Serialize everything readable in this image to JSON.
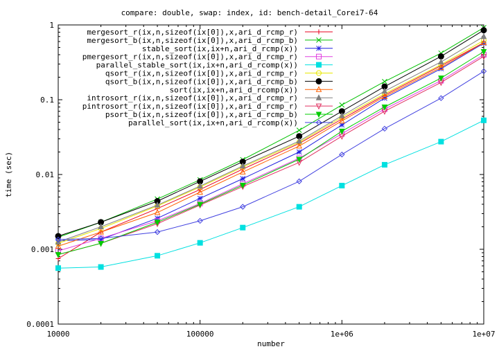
{
  "chart_data": {
    "type": "line",
    "title": "compare: double, swap: index, id: bench-detail_Corei7-64",
    "xlabel": "number",
    "ylabel": "time (sec)",
    "xscale": "log",
    "yscale": "log",
    "xlim": [
      10000,
      10000000
    ],
    "ylim": [
      0.0001,
      1
    ],
    "x_ticks": [
      {
        "value": 10000,
        "label": "10000"
      },
      {
        "value": 100000,
        "label": "100000"
      },
      {
        "value": 1000000,
        "label": "1e+06"
      },
      {
        "value": 10000000,
        "label": "1e+07"
      }
    ],
    "y_ticks": [
      {
        "value": 0.0001,
        "label": "0.0001"
      },
      {
        "value": 0.001,
        "label": "0.001"
      },
      {
        "value": 0.01,
        "label": "0.01"
      },
      {
        "value": 0.1,
        "label": "0.1"
      },
      {
        "value": 1,
        "label": "1"
      }
    ],
    "legend_position": "top-right",
    "x": [
      10000,
      20000,
      50000,
      100000,
      200000,
      500000,
      1000000,
      2000000,
      5000000,
      10000000
    ],
    "series": [
      {
        "name": "mergesort_r(ix,n,sizeof(ix[0]),x,ari_d_rcmp_r)",
        "color": "#e8001c",
        "marker": "plus",
        "values": [
          0.00075,
          0.0017,
          0.0035,
          0.0063,
          0.0118,
          0.026,
          0.055,
          0.115,
          0.285,
          0.58
        ]
      },
      {
        "name": "mergesort_b(ix,n,sizeof(ix[0]),x,ari_d_rcmp_b)",
        "color": "#00c000",
        "marker": "cross",
        "values": [
          0.00145,
          0.0023,
          0.0047,
          0.0085,
          0.0158,
          0.039,
          0.085,
          0.175,
          0.42,
          0.92
        ]
      },
      {
        "name": "stable_sort(ix,ix+n,ari_d_rcmp(x))",
        "color": "#2020e0",
        "marker": "star",
        "values": [
          0.0013,
          0.00135,
          0.0026,
          0.0048,
          0.0088,
          0.02,
          0.046,
          0.105,
          0.26,
          0.57
        ]
      },
      {
        "name": "pmergesort_r(ix,n,sizeof(ix[0]),x,ari_d_rcmp_r)",
        "color": "#e040e0",
        "marker": "square-open",
        "values": [
          0.00095,
          0.0014,
          0.0024,
          0.0041,
          0.0075,
          0.0165,
          0.035,
          0.075,
          0.18,
          0.4
        ]
      },
      {
        "name": "parallel_stable_sort(ix,ix+n,ari_d_rcomp(x))",
        "color": "#00e0e0",
        "marker": "square-filled",
        "values": [
          0.00056,
          0.00058,
          0.00082,
          0.00122,
          0.00195,
          0.0037,
          0.0071,
          0.0135,
          0.0275,
          0.053
        ]
      },
      {
        "name": "qsort_r(ix,n,sizeof(ix[0]),x,ari_d_rcmp_r)",
        "color": "#e8e800",
        "marker": "circle-open",
        "values": [
          0.0012,
          0.0019,
          0.0038,
          0.0068,
          0.0126,
          0.027,
          0.058,
          0.12,
          0.295,
          0.62
        ]
      },
      {
        "name": "qsort_b(ix,n,sizeof(ix[0]),x,ari_d_rcmp_b)",
        "color": "#000000",
        "marker": "circle-filled",
        "values": [
          0.0015,
          0.0023,
          0.0044,
          0.0081,
          0.0148,
          0.0325,
          0.07,
          0.15,
          0.38,
          0.85
        ]
      },
      {
        "name": "sort(ix,ix+n,ari_d_rcomp(x))",
        "color": "#ff6000",
        "marker": "triangle-open",
        "values": [
          0.0011,
          0.0017,
          0.0031,
          0.0058,
          0.0108,
          0.024,
          0.052,
          0.11,
          0.27,
          0.58
        ]
      },
      {
        "name": "introsort_r(ix,n,sizeof(ix[0]),x,ari_d_rcmp_r)",
        "color": "#808080",
        "marker": "triangle-filled",
        "values": [
          0.00125,
          0.002,
          0.0039,
          0.007,
          0.013,
          0.028,
          0.061,
          0.13,
          0.32,
          0.7
        ]
      },
      {
        "name": "pintrosort_r(ix,n,sizeof(ix[0]),x,ari_d_rcmp_r)",
        "color": "#e03060",
        "marker": "triangle-down-open",
        "values": [
          0.00085,
          0.0012,
          0.0022,
          0.0039,
          0.0069,
          0.0145,
          0.0325,
          0.07,
          0.17,
          0.38
        ]
      },
      {
        "name": "psort_b(ix,n,sizeof(ix[0]),x,ari_d_rcmp_b)",
        "color": "#00cc00",
        "marker": "triangle-down-filled",
        "values": [
          0.00085,
          0.0012,
          0.0023,
          0.004,
          0.0072,
          0.016,
          0.038,
          0.08,
          0.195,
          0.44
        ]
      },
      {
        "name": "parallel_sort(ix,ix+n,ari_d_rcomp(x))",
        "color": "#4040e0",
        "marker": "diamond-open",
        "values": [
          0.00135,
          0.0014,
          0.0017,
          0.0024,
          0.0037,
          0.0081,
          0.0185,
          0.041,
          0.105,
          0.24
        ]
      }
    ]
  }
}
